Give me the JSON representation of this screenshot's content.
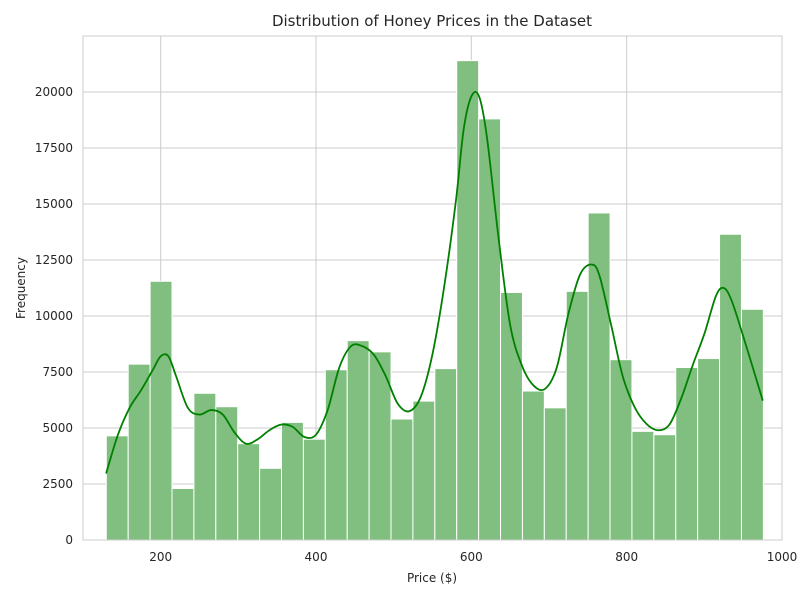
{
  "chart_data": {
    "type": "histogram",
    "title": "Distribution of Honey Prices in the Dataset",
    "xlabel": "Price ($)",
    "ylabel": "Frequency",
    "xlim": [
      100,
      1000
    ],
    "ylim": [
      0,
      22500
    ],
    "x_ticks": [
      200,
      400,
      600,
      800,
      1000
    ],
    "y_ticks": [
      0,
      2500,
      5000,
      7500,
      10000,
      12500,
      15000,
      17500,
      20000
    ],
    "grid": true,
    "bin_start": 130,
    "bin_width": 28.2,
    "values": [
      4650,
      7850,
      11550,
      2300,
      6550,
      5950,
      4300,
      3200,
      5250,
      4500,
      7600,
      8900,
      8400,
      5400,
      6200,
      7650,
      21400,
      18800,
      11050,
      6650,
      5900,
      11100,
      14600,
      8050,
      4850,
      4700,
      7700,
      8100,
      13650,
      10300
    ],
    "kde": {
      "x": [
        130,
        145,
        160,
        175,
        190,
        200,
        210,
        220,
        235,
        250,
        265,
        280,
        295,
        310,
        325,
        340,
        355,
        370,
        385,
        400,
        415,
        430,
        445,
        460,
        475,
        490,
        505,
        520,
        535,
        550,
        565,
        580,
        590,
        600,
        610,
        620,
        635,
        650,
        665,
        680,
        695,
        710,
        725,
        740,
        755,
        765,
        780,
        795,
        810,
        825,
        840,
        855,
        870,
        885,
        900,
        915,
        925,
        935,
        950,
        965,
        975
      ],
      "y": [
        3000,
        4700,
        5900,
        6700,
        7600,
        8200,
        8200,
        7300,
        5900,
        5600,
        5800,
        5600,
        4800,
        4300,
        4500,
        4900,
        5150,
        5050,
        4600,
        4700,
        5800,
        7700,
        8650,
        8650,
        8250,
        7300,
        6100,
        5750,
        6400,
        8300,
        11300,
        15100,
        18300,
        19800,
        19800,
        18000,
        13500,
        9600,
        7800,
        6900,
        6750,
        7700,
        10100,
        11850,
        12300,
        11800,
        9600,
        7300,
        5950,
        5200,
        4900,
        5150,
        6300,
        7800,
        9200,
        10900,
        11250,
        10700,
        9100,
        7400,
        6250
      ]
    },
    "colors": {
      "bar_fill": "#80bf7f",
      "bar_edge": "#ffffff",
      "kde_line": "#008000"
    }
  }
}
